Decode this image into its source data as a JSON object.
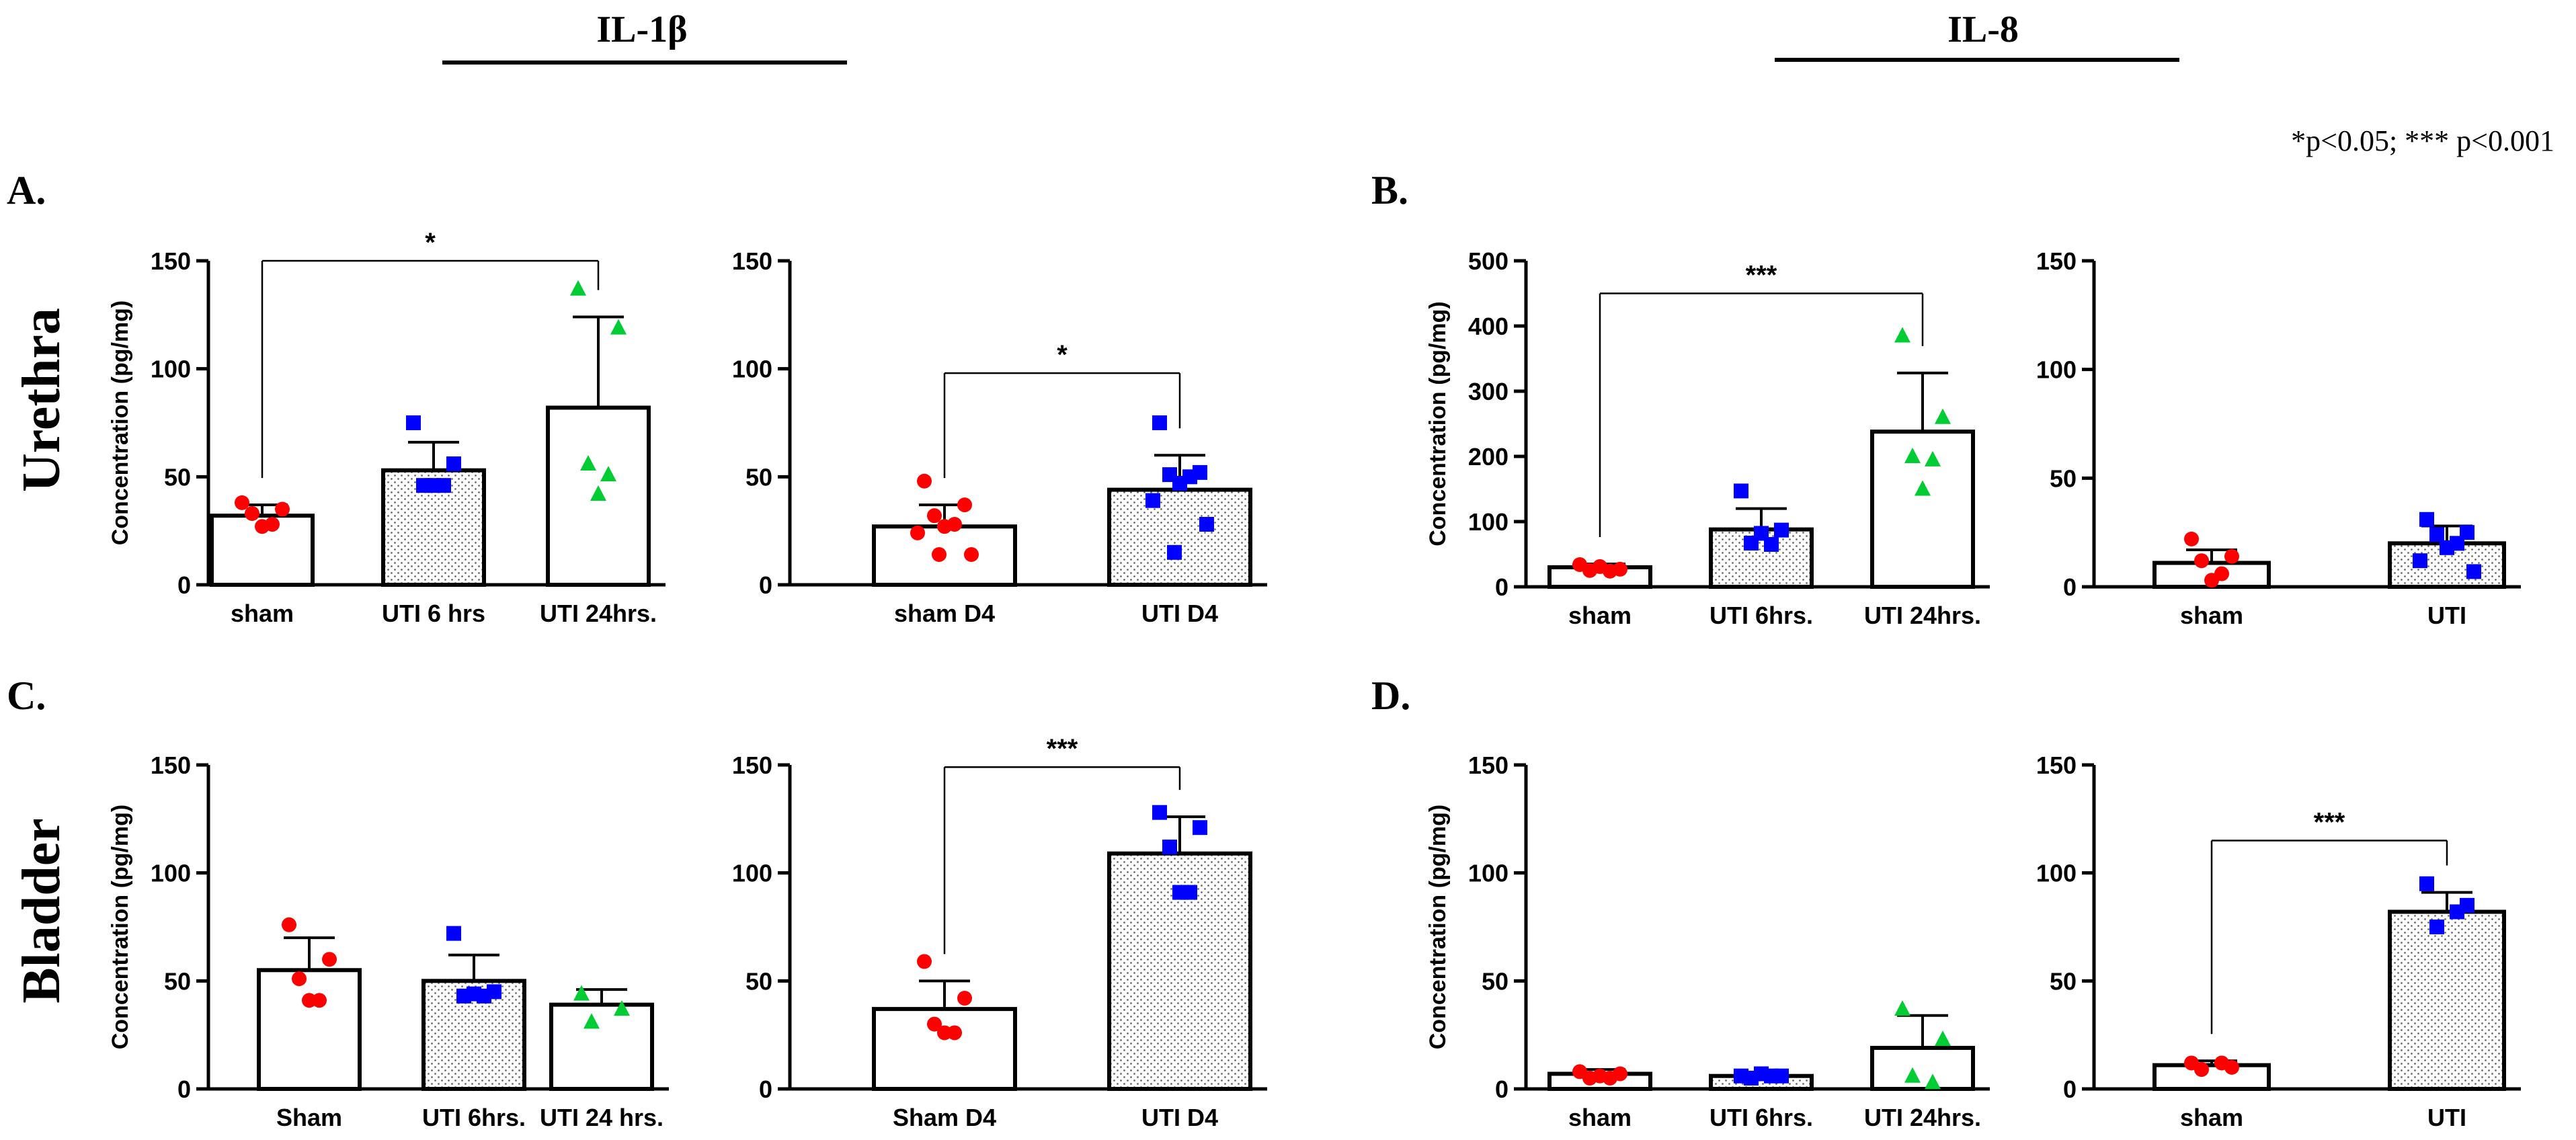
{
  "figure": {
    "col_titles": [
      "IL-1β",
      "IL-8"
    ],
    "row_labels": [
      "Urethra",
      "Bladder"
    ],
    "panel_letters": [
      "A.",
      "B.",
      "C.",
      "D."
    ],
    "significance_note": "*p<0.05; *** p<0.001",
    "colors": {
      "sham": "#ff0000",
      "uti6": "#0000ff",
      "uti24": "#00cc33",
      "axis": "#000000"
    }
  },
  "chart_data": [
    {
      "type": "bar",
      "panel": "A",
      "cytokine": "IL-1β",
      "tissue": "Urethra",
      "ylabel": "Concentration (pg/mg)",
      "ylim": [
        0,
        150
      ],
      "yticks": [
        0,
        50,
        100,
        150
      ],
      "categories": [
        "sham",
        "UTI 6 hrs",
        "UTI 24hrs."
      ],
      "means": [
        32,
        53,
        82
      ],
      "sem": [
        5,
        13,
        42
      ],
      "hatched": [
        false,
        true,
        false
      ],
      "points": [
        [
          38,
          35,
          33,
          28,
          27
        ],
        [
          75,
          56,
          46,
          46,
          46
        ],
        [
          137,
          119,
          56,
          51,
          42
        ]
      ],
      "markers": [
        "circle",
        "square",
        "triangle"
      ],
      "colors": [
        "#ff0000",
        "#0000ff",
        "#00cc33"
      ],
      "sig": {
        "from": 0,
        "to": 2,
        "y": 150,
        "label": "*"
      }
    },
    {
      "type": "bar",
      "panel": "A",
      "cytokine": "IL-1β",
      "tissue": "Urethra",
      "ylabel": "",
      "ylim": [
        0,
        150
      ],
      "yticks": [
        0,
        50,
        100,
        150
      ],
      "categories": [
        "sham D4",
        "UTI D4"
      ],
      "means": [
        27,
        44
      ],
      "sem": [
        10,
        16
      ],
      "hatched": [
        false,
        true
      ],
      "points": [
        [
          48,
          37,
          32,
          28,
          27,
          24,
          14,
          14
        ],
        [
          75,
          52,
          51,
          50,
          47,
          39,
          28,
          15
        ]
      ],
      "markers": [
        "circle",
        "square"
      ],
      "colors": [
        "#ff0000",
        "#0000ff"
      ],
      "sig": {
        "from": 0,
        "to": 1,
        "y": 98,
        "label": "*"
      }
    },
    {
      "type": "bar",
      "panel": "B",
      "cytokine": "IL-8",
      "tissue": "Urethra",
      "ylabel": "Concentration (pg/mg)",
      "ylim": [
        0,
        500
      ],
      "yticks": [
        0,
        100,
        200,
        300,
        400,
        500
      ],
      "categories": [
        "sham",
        "UTI 6hrs.",
        "UTI 24hrs."
      ],
      "means": [
        30,
        88,
        238
      ],
      "sem": [
        5,
        32,
        90
      ],
      "hatched": [
        false,
        true,
        false
      ],
      "points": [
        [
          34,
          27,
          25,
          24,
          31
        ],
        [
          147,
          87,
          67,
          65,
          82
        ],
        [
          385,
          260,
          200,
          195,
          150
        ]
      ],
      "markers": [
        "circle",
        "square",
        "triangle"
      ],
      "colors": [
        "#ff0000",
        "#0000ff",
        "#00cc33"
      ],
      "sig": {
        "from": 0,
        "to": 2,
        "y": 450,
        "label": "***"
      }
    },
    {
      "type": "bar",
      "panel": "B",
      "cytokine": "IL-8",
      "tissue": "Urethra",
      "ylabel": "",
      "ylim": [
        0,
        150
      ],
      "yticks": [
        0,
        50,
        100,
        150
      ],
      "categories": [
        "sham",
        "UTI"
      ],
      "means": [
        11,
        20
      ],
      "sem": [
        6,
        8
      ],
      "hatched": [
        false,
        true
      ],
      "points": [
        [
          22,
          14,
          12,
          6,
          3
        ],
        [
          31,
          25,
          24,
          20,
          18,
          12,
          7
        ]
      ],
      "markers": [
        "circle",
        "square"
      ],
      "colors": [
        "#ff0000",
        "#0000ff"
      ],
      "sig": null
    },
    {
      "type": "bar",
      "panel": "C",
      "cytokine": "IL-1β",
      "tissue": "Bladder",
      "ylabel": "Concentration (pg/mg)",
      "ylim": [
        0,
        150
      ],
      "yticks": [
        0,
        50,
        100,
        150
      ],
      "categories": [
        "Sham",
        "UTI 6hrs.",
        "UTI 24 hrs."
      ],
      "means": [
        55,
        50,
        39
      ],
      "sem": [
        15,
        12,
        7
      ],
      "hatched": [
        false,
        true,
        false
      ],
      "points": [
        [
          76,
          60,
          51,
          41,
          41
        ],
        [
          72,
          45,
          43,
          43,
          44
        ],
        [
          44,
          37,
          31
        ]
      ],
      "markers": [
        "circle",
        "square",
        "triangle"
      ],
      "colors": [
        "#ff0000",
        "#0000ff",
        "#00cc33"
      ],
      "sig": null
    },
    {
      "type": "bar",
      "panel": "C",
      "cytokine": "IL-1β",
      "tissue": "Bladder",
      "ylabel": "",
      "ylim": [
        0,
        150
      ],
      "yticks": [
        0,
        50,
        100,
        150
      ],
      "categories": [
        "Sham D4",
        "UTI D4"
      ],
      "means": [
        37,
        109
      ],
      "sem": [
        13,
        17
      ],
      "hatched": [
        false,
        true
      ],
      "points": [
        [
          59,
          42,
          30,
          26,
          26
        ],
        [
          128,
          121,
          112,
          91,
          91
        ]
      ],
      "markers": [
        "circle",
        "square"
      ],
      "colors": [
        "#ff0000",
        "#0000ff"
      ],
      "sig": {
        "from": 0,
        "to": 1,
        "y": 149,
        "label": "***"
      }
    },
    {
      "type": "bar",
      "panel": "D",
      "cytokine": "IL-8",
      "tissue": "Bladder",
      "ylabel": "Concentration (pg/mg)",
      "ylim": [
        0,
        150
      ],
      "yticks": [
        0,
        50,
        100,
        150
      ],
      "categories": [
        "sham",
        "UTI 6hrs.",
        "UTI 24hrs."
      ],
      "means": [
        7,
        6,
        19
      ],
      "sem": [
        2,
        1,
        15
      ],
      "hatched": [
        false,
        true,
        false
      ],
      "points": [
        [
          8,
          7,
          5,
          5,
          6
        ],
        [
          6,
          6,
          5,
          6,
          7
        ],
        [
          37,
          23,
          6,
          3
        ]
      ],
      "markers": [
        "circle",
        "square",
        "triangle"
      ],
      "colors": [
        "#ff0000",
        "#0000ff",
        "#00cc33"
      ],
      "sig": null
    },
    {
      "type": "bar",
      "panel": "D",
      "cytokine": "IL-8",
      "tissue": "Bladder",
      "ylabel": "",
      "ylim": [
        0,
        150
      ],
      "yticks": [
        0,
        50,
        100,
        150
      ],
      "categories": [
        "sham",
        "UTI"
      ],
      "means": [
        11,
        82
      ],
      "sem": [
        2,
        9
      ],
      "hatched": [
        false,
        true
      ],
      "points": [
        [
          12,
          10,
          9,
          12
        ],
        [
          95,
          85,
          75,
          82
        ]
      ],
      "markers": [
        "circle",
        "square"
      ],
      "colors": [
        "#ff0000",
        "#0000ff"
      ],
      "sig": {
        "from": 0,
        "to": 1,
        "y": 115,
        "label": "***"
      }
    }
  ]
}
